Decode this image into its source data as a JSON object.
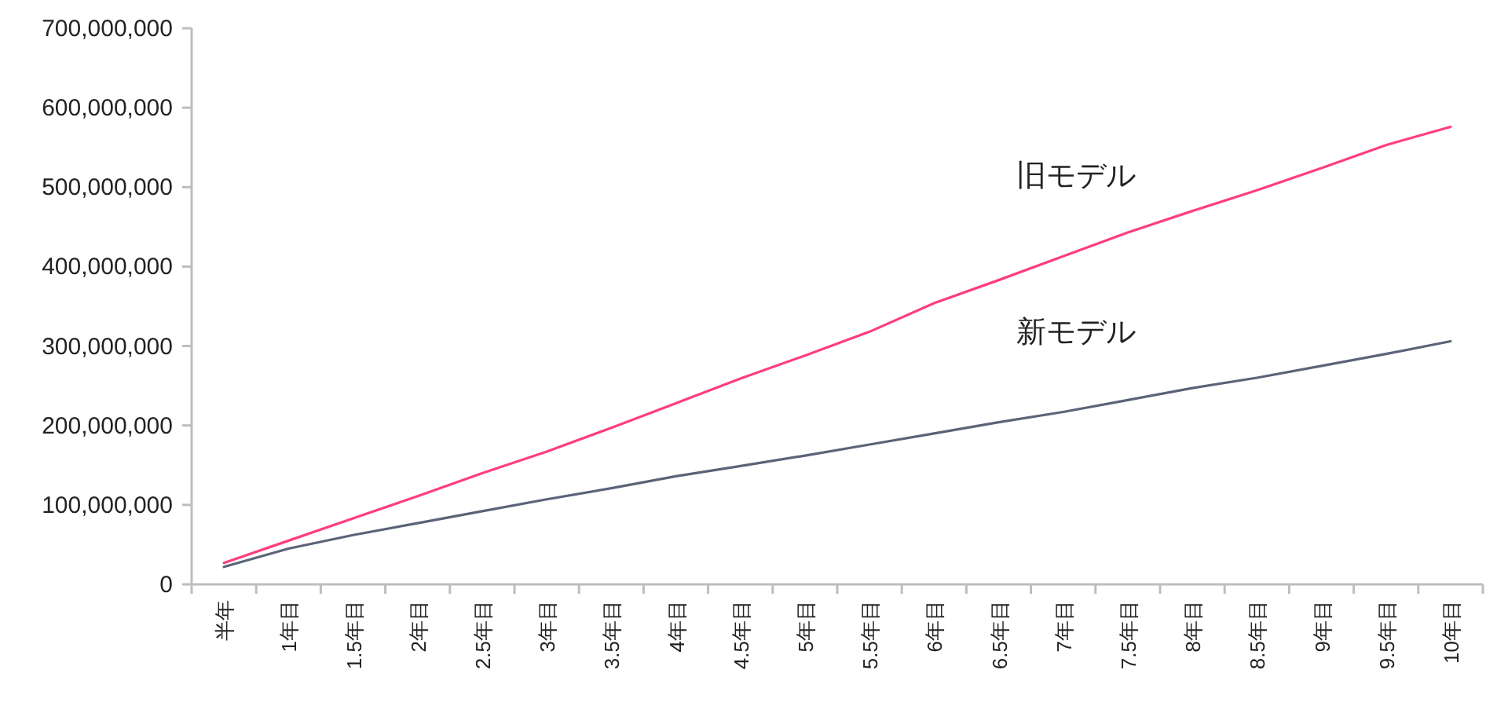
{
  "chart_data": {
    "type": "line",
    "categories": [
      "半年",
      "1年目",
      "1.5年目",
      "2年目",
      "2.5年目",
      "3年目",
      "3.5年目",
      "4年目",
      "4.5年目",
      "5年目",
      "5.5年目",
      "6年目",
      "6.5年目",
      "7年目",
      "7.5年目",
      "8年目",
      "8.5年目",
      "9年目",
      "9.5年目",
      "10年目"
    ],
    "series": [
      {
        "name": "旧モデル",
        "color": "#ff3d7f",
        "values": [
          27000000,
          55000000,
          83000000,
          111000000,
          140000000,
          167000000,
          197000000,
          228000000,
          259000000,
          288000000,
          318000000,
          354000000,
          383000000,
          413000000,
          443000000,
          470000000,
          496000000,
          524000000,
          553000000,
          576000000
        ]
      },
      {
        "name": "新モデル",
        "color": "#5a6478",
        "values": [
          22000000,
          45000000,
          62000000,
          77000000,
          92000000,
          107000000,
          121000000,
          136000000,
          149000000,
          162000000,
          176000000,
          190000000,
          204000000,
          217000000,
          232000000,
          247000000,
          260000000,
          275000000,
          290000000,
          306000000
        ]
      }
    ],
    "ylim": [
      0,
      700000000
    ],
    "yticks": [
      {
        "value": 0,
        "label": "0"
      },
      {
        "value": 100000000,
        "label": "100,000,000"
      },
      {
        "value": 200000000,
        "label": "200,000,000"
      },
      {
        "value": 300000000,
        "label": "300,000,000"
      },
      {
        "value": 400000000,
        "label": "400,000,000"
      },
      {
        "value": 500000000,
        "label": "500,000,000"
      },
      {
        "value": 600000000,
        "label": "600,000,000"
      },
      {
        "value": 700000000,
        "label": "700,000,000"
      }
    ],
    "grid": false,
    "marker": "none",
    "line_style": "solid"
  }
}
